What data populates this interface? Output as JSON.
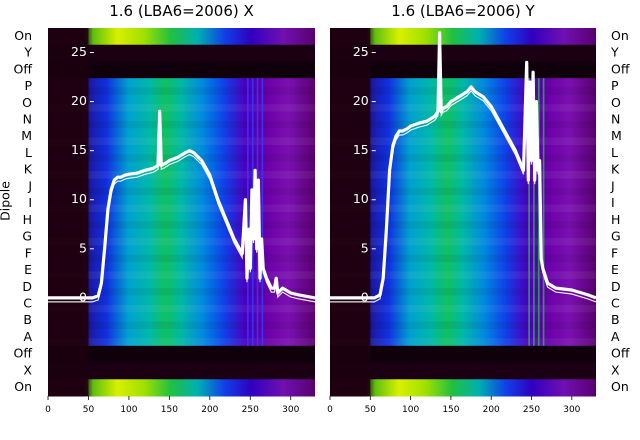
{
  "chart_data": {
    "type": "heatmap",
    "row_labels": [
      "On",
      "Y",
      "Off",
      "P",
      "O",
      "N",
      "M",
      "L",
      "K",
      "J",
      "I",
      "H",
      "G",
      "F",
      "E",
      "D",
      "C",
      "B",
      "A",
      "Off",
      "X",
      "On"
    ],
    "ylabel": "Dipole",
    "x_ticks": [
      0,
      50,
      100,
      150,
      200,
      250,
      300
    ],
    "xlim": [
      0,
      330
    ],
    "overlay_ylim": [
      -10,
      27.5
    ],
    "overlay_y_ticks": [
      0,
      5,
      10,
      15,
      20,
      25
    ],
    "panels": [
      {
        "title": "1.6 (LBA6=2006) X",
        "overlay_line": {
          "x": [
            0,
            55,
            62,
            66,
            70,
            74,
            78,
            82,
            86,
            90,
            95,
            100,
            110,
            120,
            130,
            136,
            138,
            140,
            145,
            150,
            160,
            170,
            175,
            180,
            190,
            200,
            210,
            220,
            230,
            240,
            244,
            246,
            248,
            250,
            252,
            254,
            256,
            258,
            260,
            262,
            264,
            266,
            270,
            276,
            280,
            282,
            284,
            290,
            300,
            310,
            330
          ],
          "y": [
            0,
            0,
            0.2,
            1.5,
            5,
            9,
            11,
            12,
            12.3,
            12.3,
            12.5,
            12.6,
            12.7,
            13,
            13.2,
            13.5,
            19,
            13.5,
            13.7,
            14,
            14.3,
            14.8,
            15,
            14.8,
            14,
            12.5,
            10,
            8,
            6,
            4.5,
            10,
            2,
            7,
            3,
            11,
            6,
            13,
            5,
            12,
            2,
            6,
            3,
            2,
            1,
            1,
            2,
            0.5,
            1,
            0.5,
            0.3,
            0
          ]
        }
      },
      {
        "title": "1.6 (LBA6=2006) Y",
        "overlay_line": {
          "x": [
            0,
            55,
            62,
            66,
            70,
            74,
            78,
            82,
            86,
            90,
            95,
            100,
            110,
            120,
            130,
            134,
            136,
            138,
            140,
            145,
            150,
            160,
            170,
            175,
            180,
            190,
            200,
            210,
            220,
            230,
            240,
            244,
            246,
            248,
            250,
            252,
            254,
            256,
            258,
            260,
            262,
            264,
            266,
            270,
            276,
            280,
            300,
            320,
            330
          ],
          "y": [
            0,
            0,
            0.3,
            2,
            7,
            13,
            15.5,
            16.5,
            17,
            17,
            17.2,
            17.5,
            17.8,
            18,
            18.5,
            19,
            27,
            19,
            19.3,
            19.5,
            20,
            20.5,
            21,
            21.5,
            21,
            20.5,
            19.5,
            18,
            16.5,
            15,
            13,
            24,
            12,
            22,
            14,
            23,
            12,
            20,
            13,
            14,
            4,
            3,
            2.5,
            1.5,
            1.2,
            1,
            0.8,
            0.3,
            0
          ]
        }
      }
    ]
  }
}
